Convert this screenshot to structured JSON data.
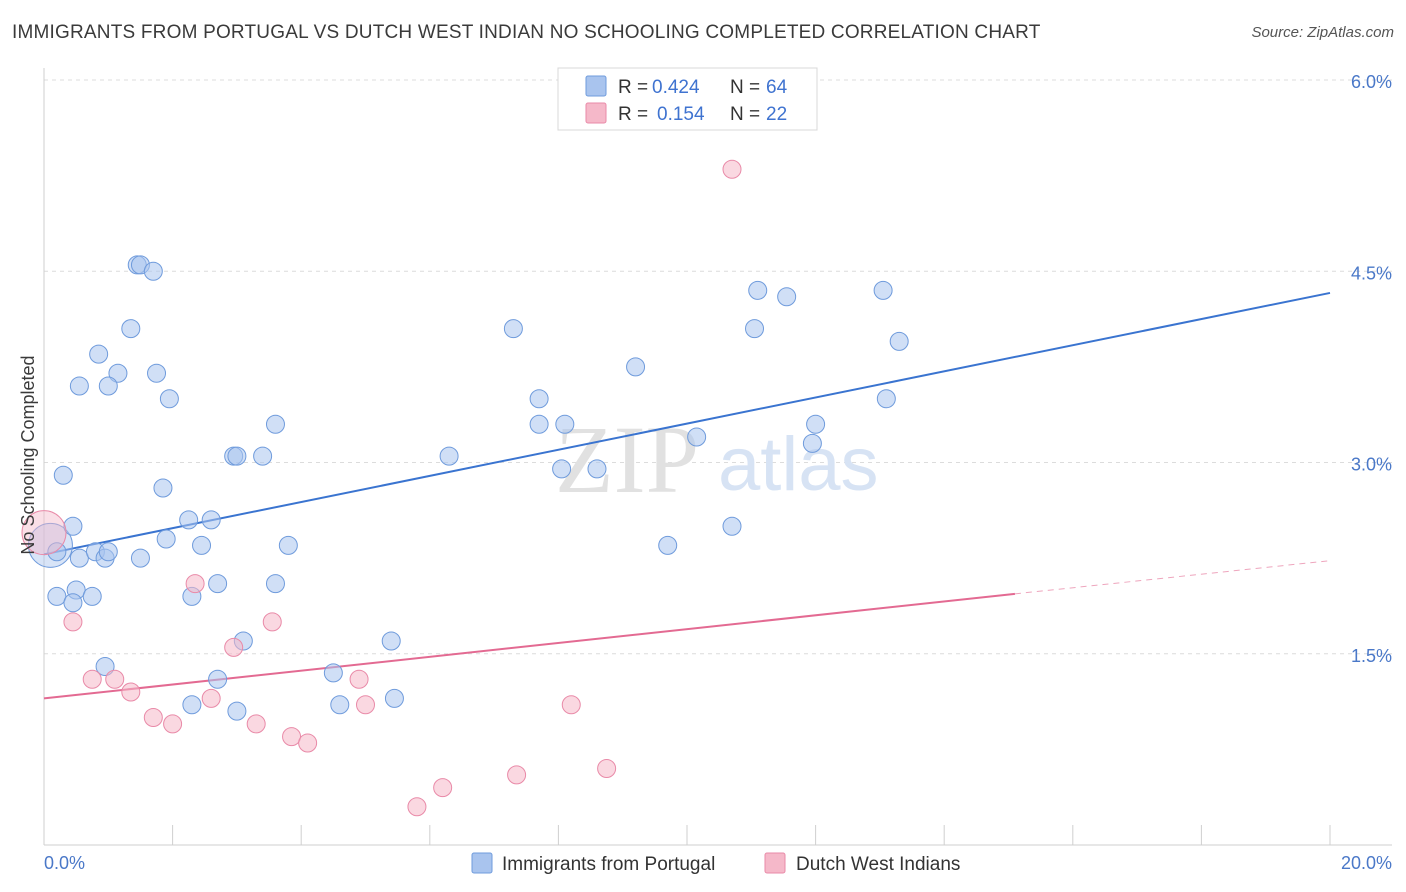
{
  "title": "IMMIGRANTS FROM PORTUGAL VS DUTCH WEST INDIAN NO SCHOOLING COMPLETED CORRELATION CHART",
  "source": "Source: ZipAtlas.com",
  "watermark": {
    "zip": "ZIP",
    "atlas": "atlas"
  },
  "legend_top": {
    "rows": [
      {
        "r_label": "R = ",
        "r_value": "0.424",
        "n_label": "N = ",
        "n_value": "64",
        "color": "#a9c4ee"
      },
      {
        "r_label": "R = ",
        "r_value": "0.154",
        "n_label": "N = ",
        "n_value": "22",
        "color": "#f5b8c9"
      }
    ]
  },
  "legend_bottom": {
    "items": [
      {
        "label": "Immigrants from Portugal",
        "color": "#a9c4ee"
      },
      {
        "label": "Dutch West Indians",
        "color": "#f5b8c9"
      }
    ]
  },
  "chart_data": {
    "type": "scatter",
    "title": "IMMIGRANTS FROM PORTUGAL VS DUTCH WEST INDIAN NO SCHOOLING COMPLETED CORRELATION CHART",
    "xlabel": "",
    "ylabel": "No Schooling Completed",
    "xlim": [
      0,
      20
    ],
    "ylim": [
      0,
      6.2
    ],
    "x_tick_labels": [
      "0.0%",
      "20.0%"
    ],
    "y_ticks": [
      1.5,
      3.0,
      4.5,
      6.0
    ],
    "y_tick_labels": [
      "1.5%",
      "3.0%",
      "4.5%",
      "6.0%"
    ],
    "grid": true,
    "legend_position": "top-center",
    "series": [
      {
        "name": "Immigrants from Portugal",
        "color": "#a9c4ee",
        "edge": "#6f9bdc",
        "trend": {
          "x": [
            0,
            20
          ],
          "y": [
            2.28,
            4.33
          ],
          "color": "#3a74d0"
        },
        "points": [
          [
            0.1,
            2.35
          ],
          [
            0.2,
            2.3
          ],
          [
            0.55,
            2.25
          ],
          [
            0.8,
            2.3
          ],
          [
            0.5,
            2.0
          ],
          [
            0.45,
            2.5
          ],
          [
            0.95,
            2.25
          ],
          [
            0.2,
            1.95
          ],
          [
            0.45,
            1.9
          ],
          [
            0.75,
            1.95
          ],
          [
            0.95,
            1.4
          ],
          [
            0.85,
            3.85
          ],
          [
            1.15,
            3.7
          ],
          [
            0.55,
            3.6
          ],
          [
            1.95,
            3.5
          ],
          [
            1.75,
            3.7
          ],
          [
            1.35,
            4.05
          ],
          [
            1.0,
            3.6
          ],
          [
            1.45,
            4.55
          ],
          [
            1.5,
            4.55
          ],
          [
            1.7,
            4.5
          ],
          [
            3.6,
            3.3
          ],
          [
            1.85,
            2.8
          ],
          [
            2.25,
            2.55
          ],
          [
            2.6,
            2.55
          ],
          [
            2.95,
            3.05
          ],
          [
            3.0,
            3.05
          ],
          [
            3.4,
            3.05
          ],
          [
            3.8,
            2.35
          ],
          [
            2.45,
            2.35
          ],
          [
            3.6,
            2.05
          ],
          [
            4.5,
            1.35
          ],
          [
            5.4,
            1.6
          ],
          [
            6.3,
            3.05
          ],
          [
            7.3,
            4.05
          ],
          [
            7.7,
            3.3
          ],
          [
            8.1,
            3.3
          ],
          [
            7.7,
            3.5
          ],
          [
            8.6,
            2.95
          ],
          [
            9.2,
            3.75
          ],
          [
            10.15,
            3.2
          ],
          [
            11.05,
            4.05
          ],
          [
            11.55,
            4.3
          ],
          [
            11.95,
            3.15
          ],
          [
            13.05,
            4.35
          ],
          [
            13.3,
            3.95
          ],
          [
            11.1,
            4.35
          ],
          [
            12.0,
            3.3
          ],
          [
            13.1,
            3.5
          ],
          [
            10.7,
            2.5
          ],
          [
            9.7,
            2.35
          ],
          [
            8.05,
            2.95
          ],
          [
            3.0,
            1.05
          ],
          [
            4.6,
            1.1
          ],
          [
            3.1,
            1.6
          ],
          [
            5.45,
            1.15
          ],
          [
            2.3,
            1.1
          ],
          [
            2.7,
            1.3
          ],
          [
            2.3,
            1.95
          ],
          [
            2.7,
            2.05
          ],
          [
            1.5,
            2.25
          ],
          [
            0.3,
            2.9
          ],
          [
            1.0,
            2.3
          ],
          [
            1.9,
            2.4
          ]
        ]
      },
      {
        "name": "Dutch West Indians",
        "color": "#f5b8c9",
        "edge": "#e98aa8",
        "trend": {
          "x": [
            0,
            15.1
          ],
          "y": [
            1.15,
            1.97
          ],
          "color": "#e36a92",
          "dashed_to": [
            20,
            2.23
          ]
        },
        "points": [
          [
            0.0,
            2.45
          ],
          [
            0.45,
            1.75
          ],
          [
            0.75,
            1.3
          ],
          [
            1.1,
            1.3
          ],
          [
            1.35,
            1.2
          ],
          [
            1.7,
            1.0
          ],
          [
            2.0,
            0.95
          ],
          [
            2.35,
            2.05
          ],
          [
            2.6,
            1.15
          ],
          [
            2.95,
            1.55
          ],
          [
            3.3,
            0.95
          ],
          [
            3.55,
            1.75
          ],
          [
            3.85,
            0.85
          ],
          [
            4.1,
            0.8
          ],
          [
            4.9,
            1.3
          ],
          [
            5.0,
            1.1
          ],
          [
            5.8,
            0.3
          ],
          [
            6.2,
            0.45
          ],
          [
            7.35,
            0.55
          ],
          [
            8.2,
            1.1
          ],
          [
            8.75,
            0.6
          ],
          [
            10.7,
            5.3
          ]
        ]
      }
    ]
  }
}
